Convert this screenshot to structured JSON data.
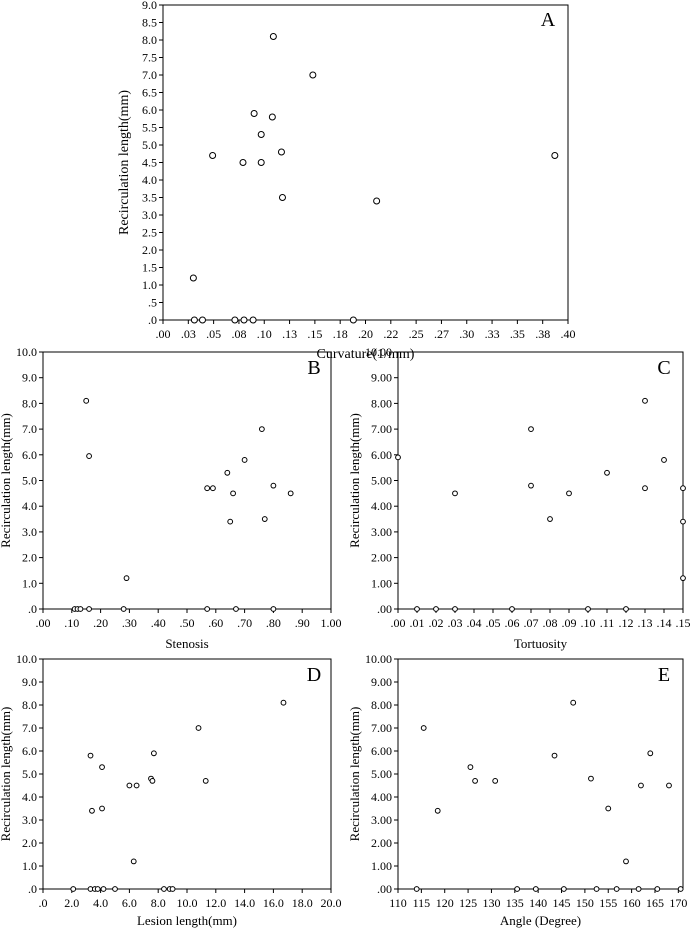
{
  "chart_data": [
    {
      "id": "A",
      "type": "scatter",
      "panel_label": "A",
      "xlabel": "Curvature(1/mm)",
      "ylabel": "Recirculation length(mm)",
      "xlim": [
        0,
        0.4
      ],
      "ylim": [
        0,
        9.0
      ],
      "x_ticks": [
        0,
        0.025,
        0.05,
        0.075,
        0.1,
        0.125,
        0.15,
        0.175,
        0.2,
        0.225,
        0.25,
        0.275,
        0.3,
        0.325,
        0.35,
        0.375,
        0.4
      ],
      "x_tick_labels": [
        ".00",
        ".03",
        ".05",
        ".08",
        ".10",
        ".13",
        ".15",
        ".18",
        ".20",
        ".22",
        ".25",
        ".27",
        ".30",
        ".33",
        ".35",
        ".38",
        ".40"
      ],
      "y_ticks": [
        0,
        0.5,
        1.0,
        1.5,
        2.0,
        2.5,
        3.0,
        3.5,
        4.0,
        4.5,
        5.0,
        5.5,
        6.0,
        6.5,
        7.0,
        7.5,
        8.0,
        8.5,
        9.0
      ],
      "y_tick_labels": [
        ".0",
        ".5",
        "1.0",
        "1.5",
        "2.0",
        "2.5",
        "3.0",
        "3.5",
        "4.0",
        "4.5",
        "5.0",
        "5.5",
        "6.0",
        "6.5",
        "7.0",
        "7.5",
        "8.0",
        "8.5",
        "9.0"
      ],
      "grid": false,
      "points": [
        {
          "x": 0.03,
          "y": 1.2
        },
        {
          "x": 0.031,
          "y": 0.0
        },
        {
          "x": 0.039,
          "y": 0.0
        },
        {
          "x": 0.049,
          "y": 4.7
        },
        {
          "x": 0.071,
          "y": 0.0
        },
        {
          "x": 0.079,
          "y": 4.5
        },
        {
          "x": 0.08,
          "y": 0.0
        },
        {
          "x": 0.089,
          "y": 0.0
        },
        {
          "x": 0.09,
          "y": 5.9
        },
        {
          "x": 0.097,
          "y": 5.3
        },
        {
          "x": 0.097,
          "y": 4.5
        },
        {
          "x": 0.108,
          "y": 5.8
        },
        {
          "x": 0.109,
          "y": 8.1
        },
        {
          "x": 0.117,
          "y": 4.8
        },
        {
          "x": 0.118,
          "y": 3.5
        },
        {
          "x": 0.148,
          "y": 7.0
        },
        {
          "x": 0.188,
          "y": 0.0
        },
        {
          "x": 0.211,
          "y": 3.4
        },
        {
          "x": 0.387,
          "y": 4.7
        }
      ]
    },
    {
      "id": "B",
      "type": "scatter",
      "panel_label": "B",
      "xlabel": "Stenosis",
      "ylabel": "Recirculation length(mm)",
      "xlim": [
        0,
        1.0
      ],
      "ylim": [
        0,
        10.0
      ],
      "x_ticks": [
        0,
        0.1,
        0.2,
        0.3,
        0.4,
        0.5,
        0.6,
        0.7,
        0.8,
        0.9,
        1.0
      ],
      "x_tick_labels": [
        ".00",
        ".10",
        ".20",
        ".30",
        ".40",
        ".50",
        ".60",
        ".70",
        ".80",
        ".90",
        "1.00"
      ],
      "y_ticks": [
        0,
        1,
        2,
        3,
        4,
        5,
        6,
        7,
        8,
        9,
        10
      ],
      "y_tick_labels": [
        ".0",
        "1.0",
        "2.0",
        "3.0",
        "4.0",
        "5.0",
        "6.0",
        "7.0",
        "8.0",
        "9.0",
        "10.0"
      ],
      "grid": false,
      "points": [
        {
          "x": 0.11,
          "y": 0.0
        },
        {
          "x": 0.12,
          "y": 0.0
        },
        {
          "x": 0.13,
          "y": 0.0
        },
        {
          "x": 0.15,
          "y": 8.1
        },
        {
          "x": 0.16,
          "y": 0.0
        },
        {
          "x": 0.16,
          "y": 5.95
        },
        {
          "x": 0.28,
          "y": 0.0
        },
        {
          "x": 0.29,
          "y": 1.2
        },
        {
          "x": 0.57,
          "y": 4.7
        },
        {
          "x": 0.57,
          "y": 0.0
        },
        {
          "x": 0.59,
          "y": 4.7
        },
        {
          "x": 0.64,
          "y": 5.3
        },
        {
          "x": 0.65,
          "y": 3.4
        },
        {
          "x": 0.66,
          "y": 4.5
        },
        {
          "x": 0.67,
          "y": 0.0
        },
        {
          "x": 0.7,
          "y": 5.8
        },
        {
          "x": 0.76,
          "y": 7.0
        },
        {
          "x": 0.77,
          "y": 3.5
        },
        {
          "x": 0.8,
          "y": 4.8
        },
        {
          "x": 0.8,
          "y": 0.0
        },
        {
          "x": 0.86,
          "y": 4.5
        }
      ]
    },
    {
      "id": "C",
      "type": "scatter",
      "panel_label": "C",
      "xlabel": "Tortuosity",
      "ylabel": "Recirculation length(mm)",
      "xlim": [
        0,
        0.15
      ],
      "ylim": [
        0,
        10.0
      ],
      "x_ticks": [
        0,
        0.01,
        0.02,
        0.03,
        0.04,
        0.05,
        0.06,
        0.07,
        0.08,
        0.09,
        0.1,
        0.11,
        0.12,
        0.13,
        0.14,
        0.15
      ],
      "x_tick_labels": [
        ".00",
        ".01",
        ".02",
        ".03",
        ".04",
        ".05",
        ".06",
        ".07",
        ".08",
        ".09",
        ".10",
        ".11",
        ".12",
        ".13",
        ".14",
        ".15"
      ],
      "y_ticks": [
        0,
        1,
        2,
        3,
        4,
        5,
        6,
        7,
        8,
        9,
        10
      ],
      "y_tick_labels": [
        ".00",
        "1.00",
        "2.00",
        "3.00",
        "4.00",
        "5.00",
        "6.00",
        "7.00",
        "8.00",
        "9.00",
        "10.00"
      ],
      "grid": false,
      "points": [
        {
          "x": 0.0,
          "y": 5.9
        },
        {
          "x": 0.01,
          "y": 0.0
        },
        {
          "x": 0.02,
          "y": 0.0
        },
        {
          "x": 0.03,
          "y": 4.5
        },
        {
          "x": 0.03,
          "y": 0.0
        },
        {
          "x": 0.06,
          "y": 0.0
        },
        {
          "x": 0.07,
          "y": 7.0
        },
        {
          "x": 0.07,
          "y": 4.8
        },
        {
          "x": 0.08,
          "y": 3.5
        },
        {
          "x": 0.09,
          "y": 4.5
        },
        {
          "x": 0.1,
          "y": 0.0
        },
        {
          "x": 0.11,
          "y": 5.3
        },
        {
          "x": 0.12,
          "y": 0.0
        },
        {
          "x": 0.13,
          "y": 8.1
        },
        {
          "x": 0.13,
          "y": 4.7
        },
        {
          "x": 0.14,
          "y": 5.8
        },
        {
          "x": 0.15,
          "y": 4.7
        },
        {
          "x": 0.15,
          "y": 3.4
        },
        {
          "x": 0.15,
          "y": 1.2
        }
      ]
    },
    {
      "id": "D",
      "type": "scatter",
      "panel_label": "D",
      "xlabel": "Lesion length(mm)",
      "ylabel": "Recirculation length(mm)",
      "xlim": [
        0,
        20.0
      ],
      "ylim": [
        0,
        10.0
      ],
      "x_ticks": [
        0,
        2,
        4,
        6,
        8,
        10,
        12,
        14,
        16,
        18,
        20
      ],
      "x_tick_labels": [
        ".0",
        "2.0",
        "4.0",
        "6.0",
        "8.0",
        "10.0",
        "12.0",
        "14.0",
        "16.0",
        "18.0",
        "20.0"
      ],
      "y_ticks": [
        0,
        1,
        2,
        3,
        4,
        5,
        6,
        7,
        8,
        9,
        10
      ],
      "y_tick_labels": [
        ".0",
        "1.0",
        "2.0",
        "3.0",
        "4.0",
        "5.0",
        "6.0",
        "7.0",
        "8.0",
        "9.0",
        "10.0"
      ],
      "grid": false,
      "points": [
        {
          "x": 2.1,
          "y": 0.0
        },
        {
          "x": 3.3,
          "y": 5.8
        },
        {
          "x": 3.3,
          "y": 0.0
        },
        {
          "x": 3.4,
          "y": 3.4
        },
        {
          "x": 3.6,
          "y": 0.0
        },
        {
          "x": 3.8,
          "y": 0.0
        },
        {
          "x": 4.1,
          "y": 5.3
        },
        {
          "x": 4.1,
          "y": 3.5
        },
        {
          "x": 4.2,
          "y": 0.0
        },
        {
          "x": 5.0,
          "y": 0.0
        },
        {
          "x": 6.0,
          "y": 4.5
        },
        {
          "x": 6.3,
          "y": 1.2
        },
        {
          "x": 6.5,
          "y": 4.5
        },
        {
          "x": 7.5,
          "y": 4.8
        },
        {
          "x": 7.6,
          "y": 4.7
        },
        {
          "x": 7.7,
          "y": 5.9
        },
        {
          "x": 8.4,
          "y": 0.0
        },
        {
          "x": 8.8,
          "y": 0.0
        },
        {
          "x": 9.0,
          "y": 0.0
        },
        {
          "x": 10.8,
          "y": 7.0
        },
        {
          "x": 11.3,
          "y": 4.7
        },
        {
          "x": 16.7,
          "y": 8.1
        }
      ]
    },
    {
      "id": "E",
      "type": "scatter",
      "panel_label": "E",
      "xlabel": "Angle (Degree)",
      "ylabel": "Recirculation length(mm)",
      "xlim": [
        110,
        171
      ],
      "ylim": [
        0,
        10.0
      ],
      "x_ticks": [
        110,
        115,
        120,
        125,
        130,
        135,
        140,
        145,
        150,
        155,
        160,
        165,
        170
      ],
      "x_tick_labels": [
        "110",
        "115",
        "120",
        "125",
        "130",
        "135",
        "140",
        "145",
        "150",
        "155",
        "160",
        "165",
        "170"
      ],
      "y_ticks": [
        0,
        1,
        2,
        3,
        4,
        5,
        6,
        7,
        8,
        9,
        10
      ],
      "y_tick_labels": [
        ".00",
        "1.00",
        "2.00",
        "3.00",
        "4.00",
        "5.00",
        "6.00",
        "7.00",
        "8.00",
        "9.00",
        "10.00"
      ],
      "grid": false,
      "points": [
        {
          "x": 114,
          "y": 0.0
        },
        {
          "x": 115.5,
          "y": 7.0
        },
        {
          "x": 118.5,
          "y": 3.4
        },
        {
          "x": 125.5,
          "y": 5.3
        },
        {
          "x": 126.5,
          "y": 4.7
        },
        {
          "x": 130.8,
          "y": 4.7
        },
        {
          "x": 135.5,
          "y": 0.0
        },
        {
          "x": 139.5,
          "y": 0.0
        },
        {
          "x": 143.5,
          "y": 5.8
        },
        {
          "x": 145.5,
          "y": 0.0
        },
        {
          "x": 147.5,
          "y": 8.1
        },
        {
          "x": 151.3,
          "y": 4.8
        },
        {
          "x": 152.5,
          "y": 0.0
        },
        {
          "x": 155.0,
          "y": 3.5
        },
        {
          "x": 156.8,
          "y": 0.0
        },
        {
          "x": 158.8,
          "y": 1.2
        },
        {
          "x": 161.5,
          "y": 0.0
        },
        {
          "x": 162.0,
          "y": 4.5
        },
        {
          "x": 164.0,
          "y": 5.9
        },
        {
          "x": 165.5,
          "y": 0.0
        },
        {
          "x": 168.0,
          "y": 4.5
        },
        {
          "x": 170.5,
          "y": 0.0
        }
      ]
    }
  ]
}
